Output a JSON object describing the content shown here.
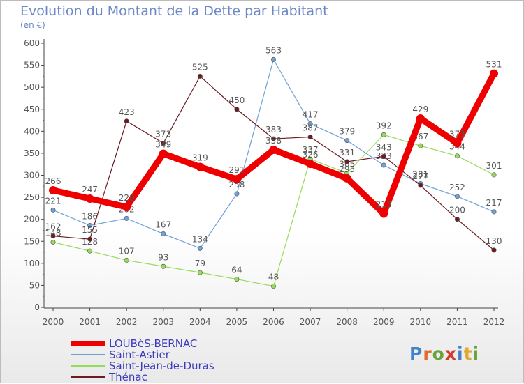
{
  "header": {
    "title": "Evolution du Montant de la Dette par Habitant",
    "subtitle": "(en €)"
  },
  "logo": {
    "text": "Proxiti",
    "letter_colors": [
      "#3e84cc",
      "#e26b2b",
      "#6aa33c",
      "#d63a2a",
      "#3e84cc",
      "#e2a82b",
      "#6aa33c"
    ]
  },
  "chart_data": {
    "type": "line",
    "title": "Evolution du Montant de la Dette par Habitant",
    "subtitle": "(en €)",
    "xlabel": "",
    "ylabel": "",
    "x": [
      "2000",
      "2001",
      "2002",
      "2003",
      "2004",
      "2005",
      "2006",
      "2007",
      "2008",
      "2009",
      "2010",
      "2011",
      "2012"
    ],
    "ylim": [
      0,
      600
    ],
    "yticks": [
      0,
      50,
      100,
      150,
      200,
      250,
      300,
      350,
      400,
      450,
      500,
      550,
      600
    ],
    "grid": false,
    "legend_position": "bottom-left",
    "series": [
      {
        "name": "LOUBèS-BERNAC",
        "color": "#ee0000",
        "thick": true,
        "values": [
          266,
          247,
          228,
          349,
          319,
          291,
          358,
          326,
          293,
          213,
          429,
          373,
          531
        ]
      },
      {
        "name": "Saint-Astier",
        "color": "#6fa1d6",
        "thick": false,
        "values": [
          221,
          186,
          202,
          167,
          134,
          258,
          563,
          417,
          379,
          323,
          281,
          252,
          217
        ]
      },
      {
        "name": "Saint-Jean-de-Duras",
        "color": "#97db5a",
        "thick": false,
        "values": [
          148,
          128,
          107,
          93,
          79,
          64,
          48,
          337,
          305,
          392,
          367,
          344,
          301
        ]
      },
      {
        "name": "Thénac",
        "color": "#6b1c22",
        "thick": false,
        "values": [
          162,
          155,
          423,
          373,
          525,
          450,
          383,
          387,
          331,
          343,
          277,
          200,
          130
        ]
      }
    ]
  }
}
